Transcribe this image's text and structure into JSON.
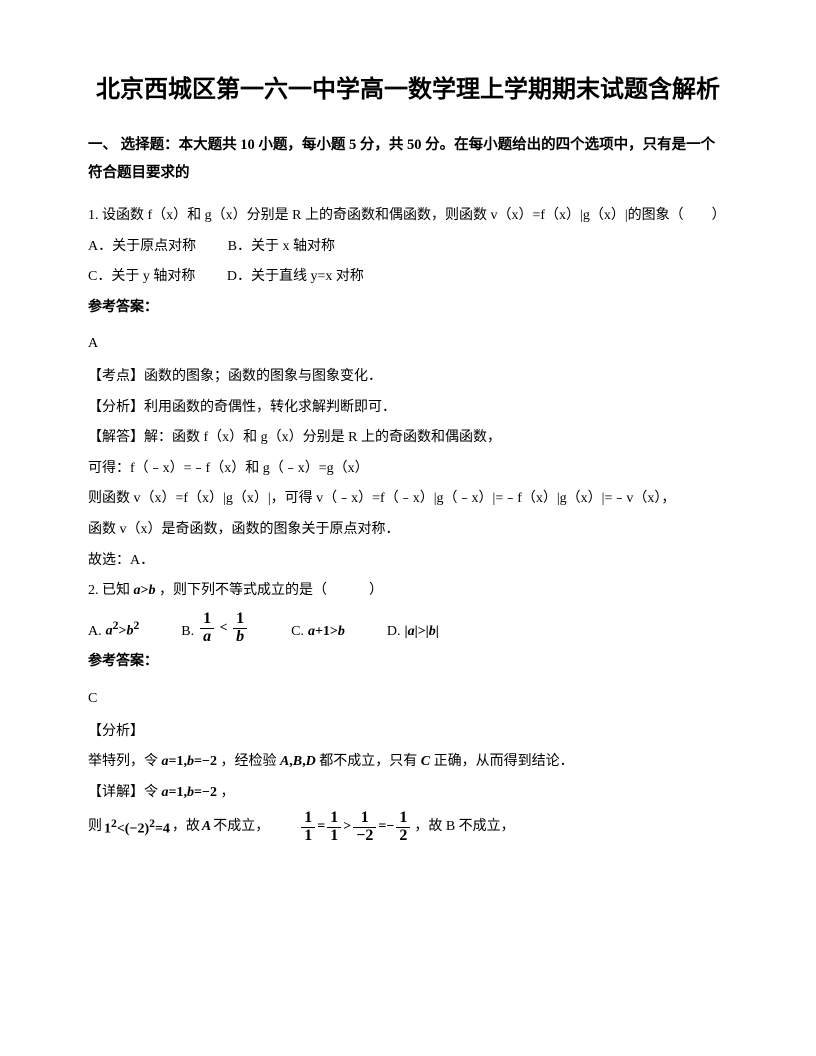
{
  "title": "北京西城区第一六一中学高一数学理上学期期末试题含解析",
  "section1": "一、 选择题：本大题共 10 小题，每小题 5 分，共 50 分。在每小题给出的四个选项中，只有是一个符合题目要求的",
  "q1": {
    "stem": "1. 设函数 f（x）和 g（x）分别是 R 上的奇函数和偶函数，则函数 v（x）=f（x）|g（x）|的图象（　　）",
    "optA": "A．关于原点对称",
    "optB": "B．关于 x 轴对称",
    "optC": "C．关于 y 轴对称",
    "optD": "D．关于直线 y=x 对称",
    "ansLabel": "参考答案：",
    "ansLetter": "A",
    "p1": "【考点】函数的图象；函数的图象与图象变化．",
    "p2": "【分析】利用函数的奇偶性，转化求解判断即可．",
    "p3": "【解答】解：函数 f（x）和 g（x）分别是 R 上的奇函数和偶函数，",
    "p4": "可得：f（﹣x）=﹣f（x）和 g（﹣x）=g（x）",
    "p5": "则函数 v（x）=f（x）|g（x）|，可得 v（﹣x）=f（﹣x）|g（﹣x）|=﹣f（x）|g（x）|=﹣v（x），",
    "p6": "函数 v（x）是奇函数，函数的图象关于原点对称．",
    "p7": "故选：A．"
  },
  "q2": {
    "stem_pre": "2. 已知",
    "stem_post": "，则下列不等式成立的是（　　　）",
    "ansLabel": "参考答案：",
    "ansLetter": "C",
    "p1": "【分析】",
    "p2a": "举特列，令",
    "p2b": "，经检验",
    "p2c": "都不成立，只有",
    "p2d": "正确，从而得到结论．",
    "p3a": "【详解】令",
    "p3b": "，",
    "p4a": "则",
    "p4b": "，故",
    "p4c": "不成立，",
    "p4d": "，故 B 不成立，"
  }
}
